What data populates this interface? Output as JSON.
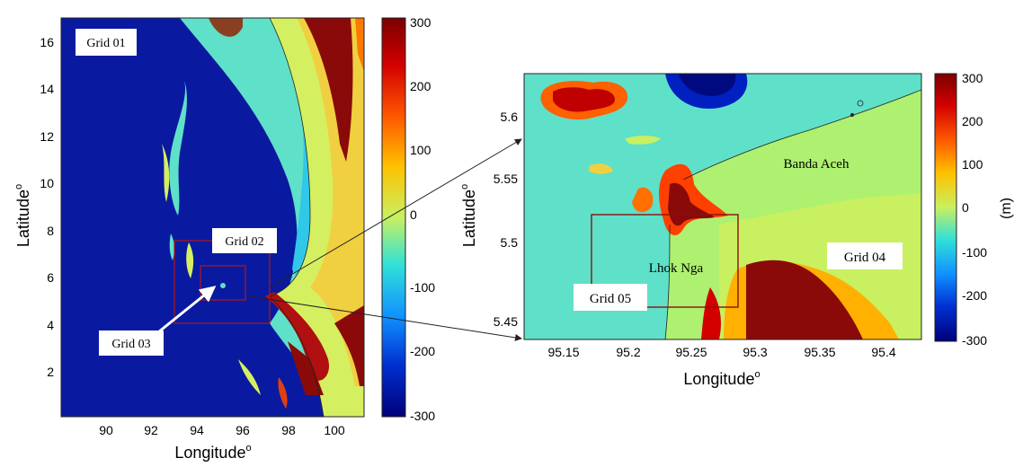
{
  "colors": {
    "deep_water": "#0a1aa0",
    "ocean": "#5fe0c8",
    "land_mid": "#d4f060",
    "land_high": "#8a0a0a",
    "grid_box": "#b01818",
    "coastline": "#222222"
  },
  "left_panel": {
    "xlabel": "Longitude",
    "ylabel": "Latitude",
    "degree_mark": "o",
    "xticks": [
      "90",
      "92",
      "94",
      "96",
      "98",
      "100"
    ],
    "yticks": [
      "2",
      "4",
      "6",
      "8",
      "10",
      "12",
      "14",
      "16"
    ],
    "colorbar_ticks": [
      "300",
      "200",
      "100",
      "0",
      "-100",
      "-200",
      "-300"
    ],
    "labels": {
      "grid01": "Grid 01",
      "grid02": "Grid 02",
      "grid03": "Grid 03"
    }
  },
  "right_panel": {
    "xlabel": "Longitude",
    "ylabel": "Latitude",
    "degree_mark": "o",
    "xticks": [
      "95.15",
      "95.2",
      "95.25",
      "95.3",
      "95.35",
      "95.4"
    ],
    "yticks": [
      "5.45",
      "5.5",
      "5.55",
      "5.6"
    ],
    "colorbar_ticks": [
      "300",
      "200",
      "100",
      "0",
      "-100",
      "-200",
      "-300"
    ],
    "colorbar_unit": "(m)",
    "labels": {
      "banda_aceh": "Banda Aceh",
      "lhok_nga": "Lhok Nga",
      "grid04": "Grid 04",
      "grid05": "Grid 05"
    }
  }
}
